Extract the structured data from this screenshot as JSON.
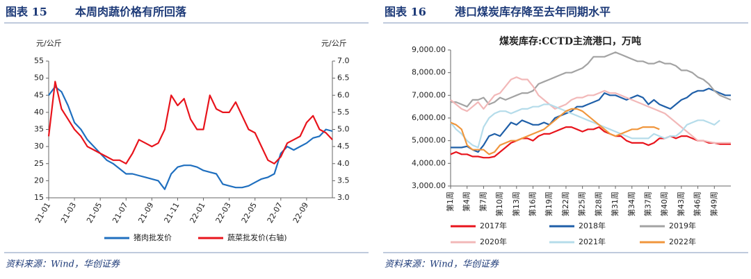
{
  "chart_data": [
    {
      "type": "line",
      "figure_label": "图表 15",
      "title": "本周肉蔬价格有所回落",
      "source": "资料来源：Wind，华创证券",
      "y_label": "元/公斤",
      "y2_label": "元/公斤",
      "categories": [
        "21-01",
        null,
        null,
        null,
        "21-03",
        null,
        null,
        null,
        "21-05",
        null,
        null,
        null,
        "21-07",
        null,
        null,
        null,
        "21-09",
        null,
        null,
        null,
        "21-11",
        null,
        null,
        null,
        "22-01",
        null,
        null,
        null,
        "22-03",
        null,
        null,
        null,
        "22-05",
        null,
        null,
        null,
        "22-07",
        null,
        null,
        null,
        "22-09",
        null,
        null,
        null,
        null
      ],
      "ylim": [
        15,
        55
      ],
      "yticks": [
        15,
        20,
        25,
        30,
        35,
        40,
        45,
        50,
        55
      ],
      "y2lim": [
        3,
        7
      ],
      "y2ticks": [
        {
          "value": 3,
          "label": "3.0"
        },
        {
          "value": 3.5,
          "label": "3.5"
        },
        {
          "value": 4,
          "label": "4.0"
        },
        {
          "value": 4.5,
          "label": "4.5"
        },
        {
          "value": 5,
          "label": "5.0"
        },
        {
          "value": 5.5,
          "label": "5.5"
        },
        {
          "value": 6,
          "label": "6.0"
        },
        {
          "value": 6.5,
          "label": "6.5"
        },
        {
          "value": 7,
          "label": "7.0"
        }
      ],
      "grid": false,
      "series": [
        {
          "name": "猪肉批发价",
          "color": "#1f6fbf",
          "values": [
            45,
            47.5,
            46,
            42,
            37,
            35,
            32,
            30,
            28,
            26,
            25,
            23.5,
            22,
            22,
            21.5,
            21,
            20.5,
            20,
            17.5,
            22,
            24,
            24.5,
            24.5,
            24,
            23,
            22.5,
            22,
            19,
            18.5,
            18,
            18,
            18.5,
            19.5,
            20.5,
            21,
            22,
            28,
            30,
            29,
            30,
            31,
            32.5,
            33,
            35,
            34.5
          ]
        },
        {
          "name": "蔬菜批发价(右轴)",
          "color": "#e8141c",
          "axis": "y2",
          "values": [
            4.8,
            6.4,
            5.6,
            5.3,
            5.0,
            4.8,
            4.5,
            4.4,
            4.3,
            4.2,
            4.1,
            4.1,
            4.0,
            4.3,
            4.7,
            4.6,
            4.5,
            4.6,
            5.0,
            6.0,
            5.7,
            5.9,
            5.3,
            5.0,
            5.0,
            6.0,
            5.6,
            5.5,
            5.5,
            5.8,
            5.4,
            5.0,
            4.9,
            4.5,
            4.1,
            4.0,
            4.2,
            4.6,
            4.7,
            4.8,
            5.2,
            5.4,
            5.0,
            4.9,
            4.7
          ]
        }
      ]
    },
    {
      "type": "line",
      "figure_label": "图表 16",
      "title": "港口煤炭库存降至去年同期水平",
      "source": "资料来源：Wind，华创证券",
      "subtitle": "煤炭库存:CCTD主流港口，万吨",
      "categories": [
        "第1周",
        null,
        null,
        "第4周",
        null,
        null,
        "第7周",
        null,
        null,
        "第10周",
        null,
        null,
        "第13周",
        null,
        null,
        "第16周",
        null,
        null,
        "第19周",
        null,
        null,
        "第22周",
        null,
        null,
        "第25周",
        null,
        null,
        "第28周",
        null,
        null,
        "第31周",
        null,
        null,
        "第34周",
        null,
        null,
        "第37周",
        null,
        null,
        "第40周",
        null,
        null,
        "第43周",
        null,
        null,
        "第46周",
        null,
        null,
        "第49周",
        null,
        null,
        null
      ],
      "ylim": [
        3000,
        9000
      ],
      "yticks": [
        {
          "value": 3000,
          "label": "3,000.00"
        },
        {
          "value": 4000,
          "label": "4,000.00"
        },
        {
          "value": 5000,
          "label": "5,000.00"
        },
        {
          "value": 6000,
          "label": "6,000.00"
        },
        {
          "value": 7000,
          "label": "7,000.00"
        },
        {
          "value": 8000,
          "label": "8,000.00"
        },
        {
          "value": 9000,
          "label": "9,000.00"
        }
      ],
      "grid": false,
      "series": [
        {
          "name": "2017年",
          "color": "#e8141c",
          "values": [
            4400,
            4500,
            4400,
            4400,
            4300,
            4300,
            4250,
            4250,
            4300,
            4500,
            4700,
            4900,
            5000,
            5100,
            5100,
            5000,
            5200,
            5300,
            5300,
            5400,
            5500,
            5600,
            5600,
            5500,
            5400,
            5500,
            5500,
            5600,
            5400,
            5300,
            5200,
            5200,
            5000,
            4900,
            4900,
            4900,
            4800,
            4900,
            5100,
            5100,
            5200,
            5100,
            5200,
            5200,
            5100,
            5000,
            5000,
            4900,
            4900,
            4850,
            4850,
            4850
          ]
        },
        {
          "name": "2018年",
          "color": "#1f5fa8",
          "values": [
            4700,
            4700,
            4700,
            4750,
            4600,
            4500,
            4800,
            5200,
            5300,
            5200,
            5500,
            5800,
            5700,
            5900,
            5800,
            5700,
            5700,
            5800,
            5700,
            6000,
            6100,
            6200,
            6300,
            6500,
            6500,
            6600,
            6700,
            6800,
            7100,
            7000,
            7000,
            6900,
            6800,
            6900,
            7000,
            6900,
            6600,
            6800,
            6600,
            6500,
            6400,
            6600,
            6800,
            6900,
            7100,
            7200,
            7200,
            7300,
            7200,
            7100,
            7000,
            7000
          ]
        },
        {
          "name": "2019年",
          "color": "#a3a3a3",
          "values": [
            6700,
            6700,
            6600,
            6500,
            6800,
            6800,
            6900,
            6600,
            6700,
            6900,
            6800,
            6900,
            7000,
            7100,
            7100,
            7200,
            7500,
            7600,
            7700,
            7800,
            7900,
            8000,
            8000,
            8100,
            8200,
            8400,
            8700,
            8700,
            8700,
            8800,
            8900,
            8800,
            8700,
            8600,
            8500,
            8500,
            8400,
            8400,
            8500,
            8400,
            8400,
            8300,
            8100,
            8100,
            8000,
            7800,
            7700,
            7500,
            7200,
            7000,
            6900,
            6800
          ]
        },
        {
          "name": "2020年",
          "color": "#f2b8b8",
          "values": [
            6800,
            6600,
            6400,
            6300,
            6500,
            6700,
            6400,
            6700,
            7000,
            7100,
            7400,
            7700,
            7800,
            7700,
            7700,
            7400,
            7000,
            6800,
            6600,
            6400,
            6500,
            6600,
            6800,
            6900,
            6900,
            7000,
            7000,
            7100,
            7200,
            7100,
            7100,
            7000,
            6900,
            6800,
            6700,
            6600,
            6500,
            6400,
            6300,
            6200,
            6000,
            5800,
            5600,
            5400,
            5200,
            5000,
            5000,
            4950,
            4900,
            4900,
            4900,
            4900
          ]
        },
        {
          "name": "2021年",
          "color": "#b5dcea",
          "values": [
            5800,
            5500,
            5300,
            5000,
            4800,
            4700,
            5600,
            6000,
            6200,
            6300,
            6300,
            6200,
            6300,
            6400,
            6400,
            6500,
            6500,
            6600,
            6600,
            6500,
            6400,
            6300,
            6200,
            6100,
            6000,
            5900,
            5800,
            5700,
            5600,
            5500,
            5400,
            5300,
            5200,
            5100,
            5100,
            5100,
            5100,
            5300,
            5200,
            5100,
            5200,
            5200,
            5400,
            5700,
            5800,
            5900,
            5900,
            5800,
            5700,
            5900,
            null,
            null
          ]
        },
        {
          "name": "2022年",
          "color": "#f0963c",
          "values": [
            5800,
            5700,
            5500,
            4800,
            4600,
            4600,
            4600,
            4400,
            4500,
            4800,
            4900,
            5000,
            5000,
            5100,
            5200,
            5300,
            5400,
            5500,
            5700,
            5900,
            6100,
            6300,
            6400,
            6400,
            6300,
            6100,
            5900,
            5700,
            5500,
            5300,
            5200,
            5300,
            5400,
            5500,
            5500,
            5600,
            5600,
            5600,
            5500,
            null,
            null,
            null,
            null,
            null,
            null,
            null,
            null,
            null,
            null,
            null,
            null,
            null
          ]
        }
      ]
    }
  ]
}
